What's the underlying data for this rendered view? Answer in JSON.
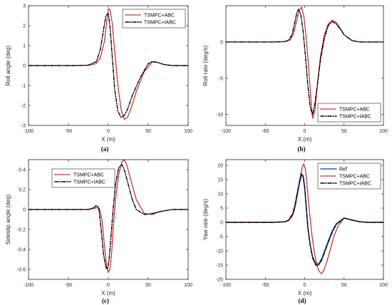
{
  "colors": {
    "TSMPC+ABC": "#c00000",
    "TSMPC+IABC": "#000000",
    "Ref": "#1f5fbf",
    "axis": "#262626",
    "legend_border": "#262626"
  },
  "chart_data": [
    {
      "type": "line",
      "panel_label": "(a)",
      "xlabel": "X (m)",
      "ylabel": "Roll angle (deg)",
      "xlim": [
        -100,
        100
      ],
      "ylim": [
        -3,
        3
      ],
      "xticks": [
        -100,
        -50,
        0,
        50,
        100
      ],
      "yticks": [
        -3,
        -2,
        -1,
        0,
        1,
        2,
        3
      ],
      "grid": false,
      "legend_position": "top-right",
      "series": [
        {
          "name": "TSMPC+ABC",
          "style": "dotted",
          "x": [
            -100,
            -40,
            -25,
            -15,
            -10,
            -5,
            -2,
            0,
            2,
            5,
            8,
            12,
            16,
            20,
            24,
            28,
            35,
            45,
            55,
            60,
            70,
            80,
            90,
            100
          ],
          "y": [
            0,
            0,
            0.01,
            0.1,
            0.4,
            1.2,
            2.2,
            2.85,
            2.8,
            2.1,
            0.7,
            -1.0,
            -2.2,
            -2.7,
            -2.6,
            -2.2,
            -1.3,
            -0.3,
            0.18,
            0.18,
            0.05,
            0,
            0,
            0
          ]
        },
        {
          "name": "TSMPC+IABC",
          "style": "dashdot",
          "x": [
            -100,
            -40,
            -25,
            -15,
            -10,
            -6,
            -3,
            0,
            2,
            5,
            8,
            12,
            16,
            20,
            24,
            30,
            40,
            50,
            55,
            60,
            70,
            80,
            90,
            100
          ],
          "y": [
            0,
            0,
            0.02,
            0.2,
            0.8,
            1.8,
            2.5,
            2.6,
            2.0,
            0.4,
            -1.2,
            -2.3,
            -2.6,
            -2.5,
            -2.2,
            -1.5,
            -0.6,
            0.1,
            0.2,
            0.17,
            0.05,
            0,
            0,
            0
          ]
        }
      ]
    },
    {
      "type": "line",
      "panel_label": "(b)",
      "xlabel": "X (m)",
      "ylabel": "Roll rate (deg/s)",
      "xlim": [
        -100,
        100
      ],
      "ylim": [
        -11.5,
        5
      ],
      "xticks": [
        -100,
        -50,
        0,
        50,
        100
      ],
      "yticks": [
        -10,
        -5,
        0
      ],
      "grid": false,
      "legend_position": "bottom-right",
      "series": [
        {
          "name": "TSMPC+ABC",
          "style": "dotted",
          "x": [
            -100,
            -40,
            -25,
            -18,
            -14,
            -10,
            -7,
            -4,
            -1,
            2,
            5,
            8,
            10,
            13,
            16,
            20,
            25,
            30,
            35,
            40,
            45,
            50,
            60,
            70,
            80,
            100
          ],
          "y": [
            0,
            0,
            0.05,
            0.3,
            1.2,
            3.0,
            4.4,
            4.8,
            3.5,
            0.5,
            -3.5,
            -8.0,
            -10.5,
            -9.5,
            -6.0,
            -2.0,
            1.0,
            2.5,
            3.0,
            2.7,
            1.9,
            1.0,
            0.2,
            0,
            0,
            0
          ]
        },
        {
          "name": "TSMPC+IABC",
          "style": "dashdot",
          "x": [
            -100,
            -40,
            -25,
            -20,
            -16,
            -13,
            -10,
            -8,
            -5,
            -2,
            1,
            4,
            7,
            10,
            13,
            16,
            20,
            25,
            30,
            35,
            40,
            45,
            50,
            60,
            70,
            80,
            100
          ],
          "y": [
            0,
            0,
            0.05,
            0.3,
            1.0,
            2.5,
            4.0,
            4.5,
            3.8,
            1.5,
            -2.0,
            -6.0,
            -9.0,
            -10.0,
            -8.5,
            -6.0,
            -2.5,
            0.5,
            2.3,
            2.8,
            2.5,
            1.8,
            1.0,
            0.2,
            0,
            0,
            0
          ]
        }
      ]
    },
    {
      "type": "line",
      "panel_label": "(c)",
      "xlabel": "X (m)",
      "ylabel": "Sideslip angle (deg)",
      "xlim": [
        -100,
        100
      ],
      "ylim": [
        -0.7,
        0.5
      ],
      "xticks": [
        -100,
        -50,
        0,
        50,
        100
      ],
      "yticks": [
        -0.6,
        -0.4,
        -0.2,
        0,
        0.2,
        0.4
      ],
      "grid": false,
      "legend_position": "top-left",
      "series": [
        {
          "name": "TSMPC+ABC",
          "style": "dotted",
          "x": [
            -100,
            -40,
            -25,
            -18,
            -14,
            -11,
            -8,
            -5,
            -2,
            0,
            2,
            4,
            6,
            9,
            13,
            17,
            20,
            23,
            28,
            35,
            45,
            55,
            65,
            80,
            100
          ],
          "y": [
            0,
            0,
            0,
            0.01,
            0.02,
            0,
            -0.1,
            -0.35,
            -0.58,
            -0.63,
            -0.6,
            -0.45,
            -0.2,
            0.1,
            0.35,
            0.48,
            0.5,
            0.45,
            0.3,
            0.1,
            -0.04,
            -0.05,
            -0.02,
            0,
            0
          ]
        },
        {
          "name": "TSMPC+IABC",
          "style": "dashdot",
          "x": [
            -100,
            -40,
            -25,
            -18,
            -15,
            -12,
            -9,
            -6,
            -3,
            -1,
            1,
            3,
            6,
            9,
            13,
            17,
            20,
            25,
            30,
            35,
            45,
            55,
            65,
            80,
            100
          ],
          "y": [
            0,
            0,
            0,
            0.02,
            0.04,
            0.02,
            -0.2,
            -0.45,
            -0.58,
            -0.6,
            -0.5,
            -0.3,
            0.0,
            0.25,
            0.42,
            0.45,
            0.4,
            0.25,
            0.1,
            0.0,
            -0.05,
            -0.04,
            -0.02,
            0,
            0
          ]
        }
      ]
    },
    {
      "type": "line",
      "panel_label": "(d)",
      "xlabel": "X (m)",
      "ylabel": "Yaw rate (deg/s)",
      "xlim": [
        -100,
        100
      ],
      "ylim": [
        -20,
        22
      ],
      "xticks": [
        -100,
        -50,
        0,
        50,
        100
      ],
      "yticks": [
        -20,
        -15,
        -10,
        -5,
        0,
        5,
        10,
        15,
        20
      ],
      "grid": false,
      "legend_position": "top-right",
      "series": [
        {
          "name": "Ref",
          "style": "solid",
          "x": [
            -100,
            -40,
            -25,
            -20,
            -15,
            -12,
            -9,
            -6,
            -4,
            -2,
            0,
            2,
            4,
            7,
            10,
            14,
            18,
            22,
            26,
            30,
            35,
            40,
            50,
            60,
            70,
            80,
            100
          ],
          "y": [
            0,
            0,
            0.2,
            0.8,
            3.0,
            6.0,
            10.5,
            14.5,
            16.5,
            16.0,
            12.0,
            5.0,
            -2.0,
            -8.0,
            -12.0,
            -14.5,
            -14.5,
            -12.5,
            -9.5,
            -6.5,
            -3.0,
            -0.5,
            1.5,
            0.8,
            0.2,
            0,
            0
          ]
        },
        {
          "name": "TSMPC+ABC",
          "style": "dotted",
          "x": [
            -100,
            -40,
            -25,
            -20,
            -15,
            -12,
            -9,
            -6,
            -3,
            -1,
            1,
            3,
            6,
            9,
            12,
            15,
            18,
            21,
            24,
            28,
            32,
            37,
            42,
            50,
            60,
            70,
            80,
            100
          ],
          "y": [
            0,
            0,
            0.2,
            0.7,
            2.5,
            5.5,
            10.0,
            15.5,
            19.5,
            20.5,
            18.5,
            13.0,
            4.0,
            -4.0,
            -10.0,
            -14.5,
            -17.0,
            -18.0,
            -17.0,
            -14.0,
            -10.0,
            -5.0,
            -1.5,
            1.5,
            0.8,
            0.2,
            0,
            0
          ]
        },
        {
          "name": "TSMPC+IABC",
          "style": "dashdot",
          "x": [
            -100,
            -40,
            -25,
            -20,
            -15,
            -12,
            -9,
            -6,
            -4,
            -2,
            0,
            2,
            4,
            7,
            10,
            14,
            18,
            22,
            26,
            30,
            35,
            40,
            50,
            60,
            70,
            80,
            100
          ],
          "y": [
            0,
            0,
            0.2,
            0.9,
            3.2,
            6.5,
            11.0,
            15.0,
            17.0,
            16.5,
            12.5,
            5.5,
            -1.5,
            -8.0,
            -12.5,
            -15.0,
            -15.0,
            -13.0,
            -10.0,
            -7.0,
            -3.5,
            -0.8,
            1.5,
            0.8,
            0.2,
            0,
            0
          ]
        }
      ]
    }
  ]
}
